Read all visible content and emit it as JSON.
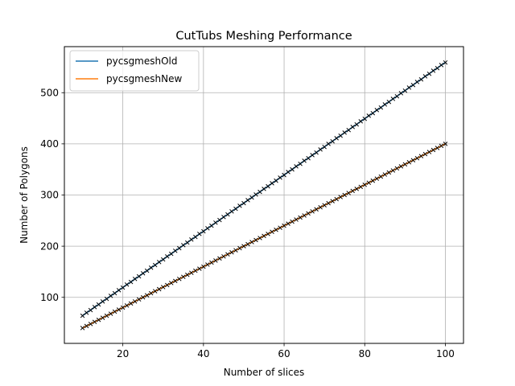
{
  "chart_data": {
    "type": "line",
    "title": "CutTubs Meshing Performance",
    "xlabel": "Number of slices",
    "ylabel": "Number of Polygons",
    "xlim": [
      5.5,
      104.5
    ],
    "ylim": [
      10,
      590
    ],
    "xticks": [
      20,
      40,
      60,
      80,
      100
    ],
    "yticks": [
      100,
      200,
      300,
      400,
      500
    ],
    "grid": true,
    "legend_position": "top-left",
    "x_start": 10,
    "x_end": 100,
    "series": [
      {
        "name": "pycsgmeshOld",
        "color": "#1f77b4",
        "marker": "x",
        "marker_color": "#000000",
        "y_at_x_start": 64,
        "y_at_x_end": 560,
        "step": "alternating +4/+6 per slice (about 5.5 per slice)"
      },
      {
        "name": "pycsgmeshNew",
        "color": "#ff7f0e",
        "marker": "x",
        "marker_color": "#000000",
        "y_at_x_start": 40,
        "y_at_x_end": 400,
        "step": "+4 per slice"
      }
    ]
  }
}
